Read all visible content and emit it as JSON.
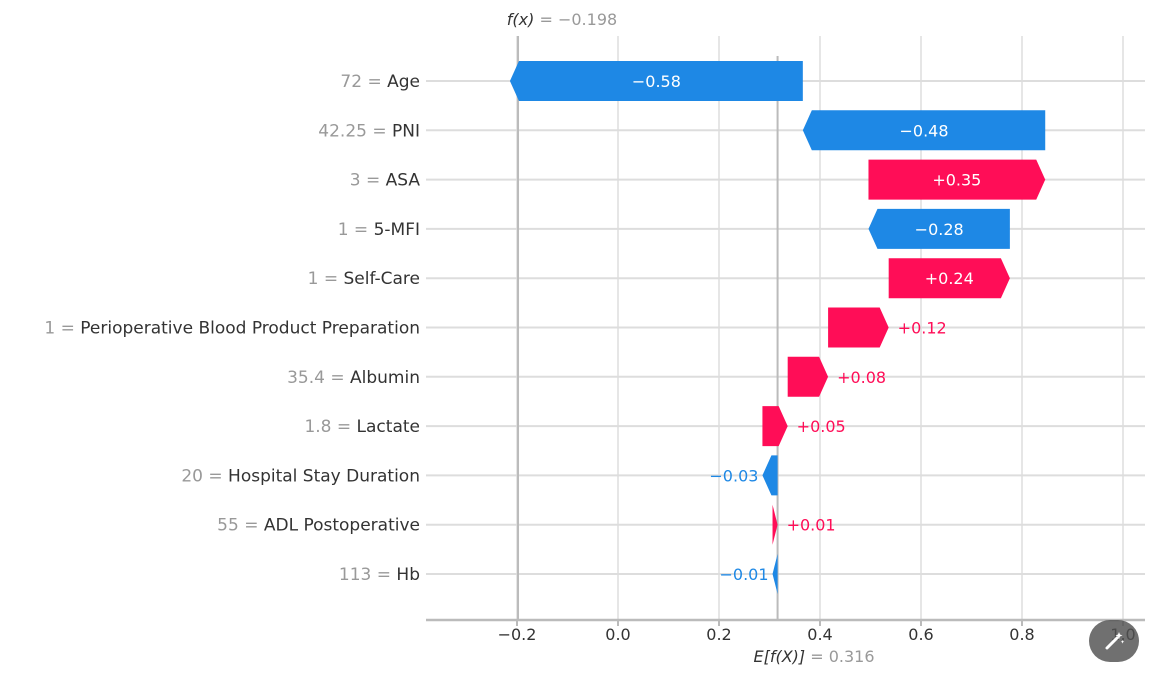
{
  "chart_data": {
    "type": "waterfall",
    "top_annotation": {
      "fn": "f(x)",
      "eq": " = ",
      "value": "−0.198"
    },
    "bottom_annotation": {
      "fn": "E[f(X)]",
      "eq": " = ",
      "value": "0.316"
    },
    "base_value": 0.316,
    "final_value": -0.198,
    "xlim": [
      -0.38,
      1.02
    ],
    "xticks": [
      -0.2,
      0.0,
      0.2,
      0.4,
      0.6,
      0.8,
      1.0
    ],
    "xtick_labels": [
      "−0.2",
      "0.0",
      "0.2",
      "0.4",
      "0.6",
      "0.8",
      "1.0"
    ],
    "grid": true,
    "colors": {
      "positive": "#ff0d57",
      "negative": "#1e88e5",
      "grid": "#dddddd",
      "axis": "#bbbbbb"
    },
    "features": [
      {
        "value": "72",
        "name": "Age",
        "contribution": -0.58,
        "label": "−0.58"
      },
      {
        "value": "42.25",
        "name": "PNI",
        "contribution": -0.48,
        "label": "−0.48"
      },
      {
        "value": "3",
        "name": "ASA",
        "contribution": 0.35,
        "label": "+0.35"
      },
      {
        "value": "1",
        "name": "5-MFI",
        "contribution": -0.28,
        "label": "−0.28"
      },
      {
        "value": "1",
        "name": "Self-Care",
        "contribution": 0.24,
        "label": "+0.24"
      },
      {
        "value": "1",
        "name": "Perioperative Blood Product Preparation",
        "contribution": 0.12,
        "label": "+0.12"
      },
      {
        "value": "35.4",
        "name": "Albumin",
        "contribution": 0.08,
        "label": "+0.08"
      },
      {
        "value": "1.8",
        "name": "Lactate",
        "contribution": 0.05,
        "label": "+0.05"
      },
      {
        "value": "20",
        "name": "Hospital Stay Duration",
        "contribution": -0.03,
        "label": "−0.03"
      },
      {
        "value": "55",
        "name": "ADL Postoperative",
        "contribution": 0.01,
        "label": "+0.01"
      },
      {
        "value": "113",
        "name": "Hb",
        "contribution": -0.01,
        "label": "−0.01"
      }
    ]
  },
  "edit_button": {
    "icon": "magic-wand-icon"
  }
}
